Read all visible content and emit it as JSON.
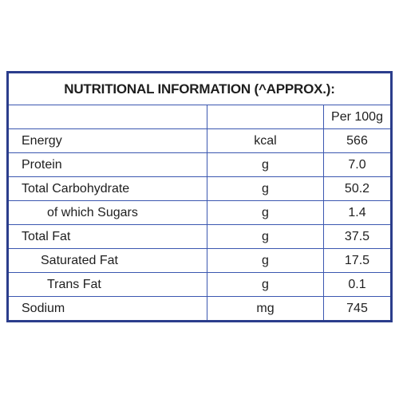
{
  "table": {
    "title": "NUTRITIONAL INFORMATION (^APPROX.):",
    "header": {
      "per": "Per 100g"
    },
    "rows": [
      [
        "Energy",
        "kcal",
        "566"
      ],
      [
        "Protein",
        "g",
        "7.0"
      ],
      [
        "Total Carbohydrate",
        "g",
        "50.2"
      ],
      [
        "of which Sugars",
        "g",
        "1.4"
      ],
      [
        "Total Fat",
        "g",
        "37.5"
      ],
      [
        "Saturated Fat",
        "g",
        "17.5"
      ],
      [
        "Trans Fat",
        "g",
        "0.1"
      ],
      [
        "Sodium",
        "mg",
        "745"
      ]
    ]
  }
}
